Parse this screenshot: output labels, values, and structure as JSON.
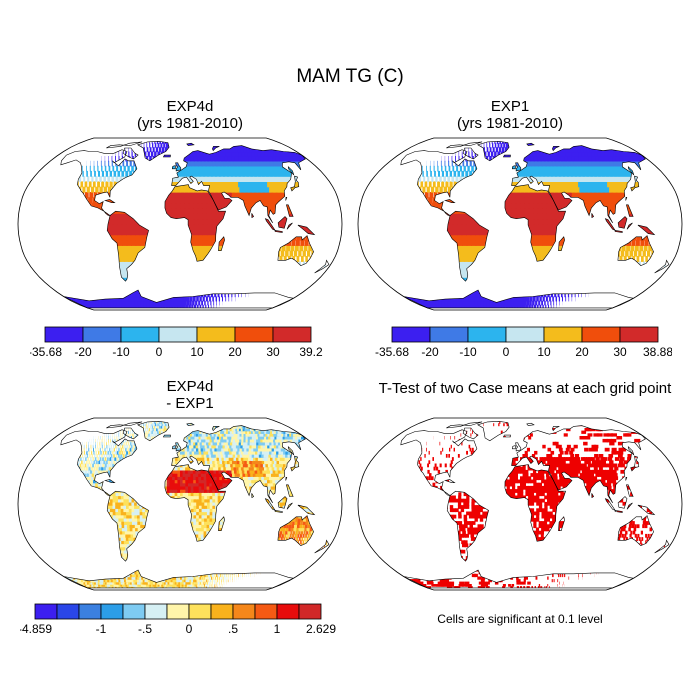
{
  "figure": {
    "title": "MAM TG (C)",
    "panels": [
      {
        "id": "exp4d",
        "title_line1": "EXP4d",
        "title_line2": "(yrs 1981-2010)"
      },
      {
        "id": "exp1",
        "title_line1": "EXP1",
        "title_line2": "(yrs 1981-2010)"
      },
      {
        "id": "diff",
        "title_line1": "EXP4d",
        "title_line2": "- EXP1"
      },
      {
        "id": "ttest",
        "title_line1": "T-Test of two Case means at each grid point",
        "title_line2": ""
      }
    ],
    "significance_note": "Cells are significant at 0.1 level"
  },
  "colorbars": [
    {
      "colors": [
        "#3c1ff0",
        "#3f7ae6",
        "#2cb4ee",
        "#c6e6f0",
        "#f4bc1c",
        "#f04e0c",
        "#d22a2a"
      ],
      "labels": [
        "-35.68",
        "-20",
        "-10",
        "0",
        "10",
        "20",
        "30",
        "39.2"
      ]
    },
    {
      "colors": [
        "#3c1ff0",
        "#3f7ae6",
        "#2cb4ee",
        "#c6e6f0",
        "#f4bc1c",
        "#f04e0c",
        "#d22a2a"
      ],
      "labels": [
        "-35.68",
        "-20",
        "-10",
        "0",
        "10",
        "20",
        "30",
        "38.88"
      ]
    },
    {
      "colors": [
        "#3c1ff0",
        "#2a46e8",
        "#3b80e0",
        "#2c9ee8",
        "#7ecbf2",
        "#d6f0f4",
        "#fff5aa",
        "#fde15c",
        "#f9b21c",
        "#f5871a",
        "#f55a14",
        "#e80c0c",
        "#d22828"
      ],
      "labels": [
        {
          "text": "-4.859",
          "boundary": 0
        },
        {
          "text": "-1",
          "boundary": 3
        },
        {
          "text": "-.5",
          "boundary": 5
        },
        {
          "text": "0",
          "boundary": 7
        },
        {
          "text": ".5",
          "boundary": 9
        },
        {
          "text": "1",
          "boundary": 11
        },
        {
          "text": "2.629",
          "boundary": 13
        }
      ]
    }
  ],
  "map_colors": {
    "ocean": "#ffffff",
    "coast": "#000000",
    "significant": "#ee0000"
  }
}
